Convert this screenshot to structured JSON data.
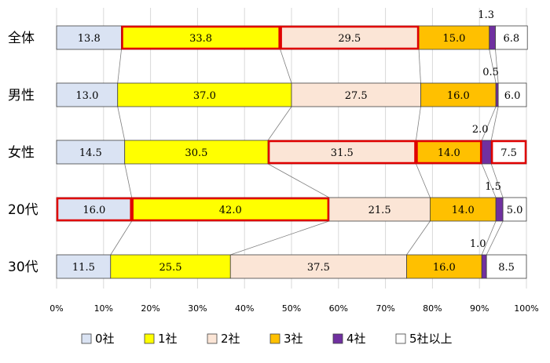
{
  "chart_data": {
    "type": "bar",
    "orientation": "horizontal",
    "stacked": "percent",
    "categories": [
      "全体",
      "男性",
      "女性",
      "20代",
      "30代"
    ],
    "series": [
      {
        "name": "0社",
        "color": "#dae3f3",
        "values": [
          13.8,
          13.0,
          14.5,
          16.0,
          11.5
        ]
      },
      {
        "name": "1社",
        "color": "#ffff00",
        "values": [
          33.8,
          37.0,
          30.5,
          42.0,
          25.5
        ]
      },
      {
        "name": "2社",
        "color": "#fbe5d6",
        "values": [
          29.5,
          27.5,
          31.5,
          21.5,
          37.5
        ]
      },
      {
        "name": "3社",
        "color": "#ffc000",
        "values": [
          15.0,
          16.0,
          14.0,
          14.0,
          16.0
        ]
      },
      {
        "name": "4社",
        "color": "#7030a0",
        "values": [
          1.3,
          0.5,
          2.0,
          1.5,
          1.0
        ]
      },
      {
        "name": "5社以上",
        "color": "#ffffff",
        "values": [
          6.8,
          6.0,
          7.5,
          5.0,
          8.5
        ]
      }
    ],
    "x_ticks": [
      "0%",
      "10%",
      "20%",
      "30%",
      "40%",
      "50%",
      "60%",
      "70%",
      "80%",
      "90%",
      "100%"
    ],
    "xlim": [
      0,
      100
    ],
    "grid": true,
    "legend_position": "bottom",
    "highlight_color": "#e00000",
    "highlights": [
      {
        "category": "全体",
        "series": [
          "1社",
          "2社"
        ]
      },
      {
        "category": "女性",
        "series": [
          "2社",
          "3社"
        ]
      },
      {
        "category": "女性",
        "series": [
          "5社以上"
        ]
      },
      {
        "category": "20代",
        "series": [
          "0社",
          "1社"
        ]
      }
    ],
    "connector_lines": true
  }
}
